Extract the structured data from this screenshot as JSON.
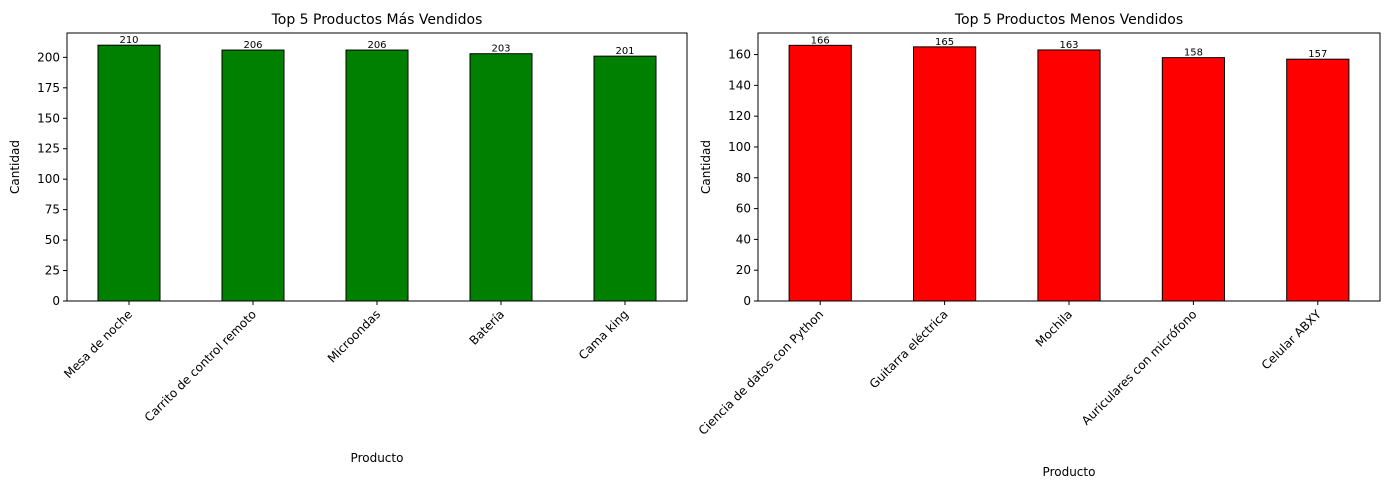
{
  "chart_data": [
    {
      "type": "bar",
      "title": "Top 5 Productos Más Vendidos",
      "xlabel": "Producto",
      "ylabel": "Cantidad",
      "categories": [
        "Mesa de noche",
        "Carrito de control remoto",
        "Microondas",
        "Batería",
        "Cama king"
      ],
      "values": [
        210,
        206,
        206,
        203,
        201
      ],
      "data_labels": [
        "210",
        "206",
        "206",
        "203",
        "201"
      ],
      "ylim": [
        0,
        220
      ],
      "yticks": [
        0,
        25,
        50,
        75,
        100,
        125,
        150,
        175,
        200
      ],
      "bar_color": "#008000",
      "edge_color": "#000000",
      "grid": false,
      "xtick_rotation": 45
    },
    {
      "type": "bar",
      "title": "Top 5 Productos Menos Vendidos",
      "xlabel": "Producto",
      "ylabel": "Cantidad",
      "categories": [
        "Ciencia de datos con Python",
        "Guitarra eléctrica",
        "Mochila",
        "Auriculares con micrófono",
        "Celular ABXY"
      ],
      "values": [
        166,
        165,
        163,
        158,
        157
      ],
      "data_labels": [
        "166",
        "165",
        "163",
        "158",
        "157"
      ],
      "ylim": [
        0,
        174
      ],
      "yticks": [
        0,
        20,
        40,
        60,
        80,
        100,
        120,
        140,
        160
      ],
      "bar_color": "#ff0000",
      "edge_color": "#000000",
      "grid": false,
      "xtick_rotation": 45
    }
  ]
}
